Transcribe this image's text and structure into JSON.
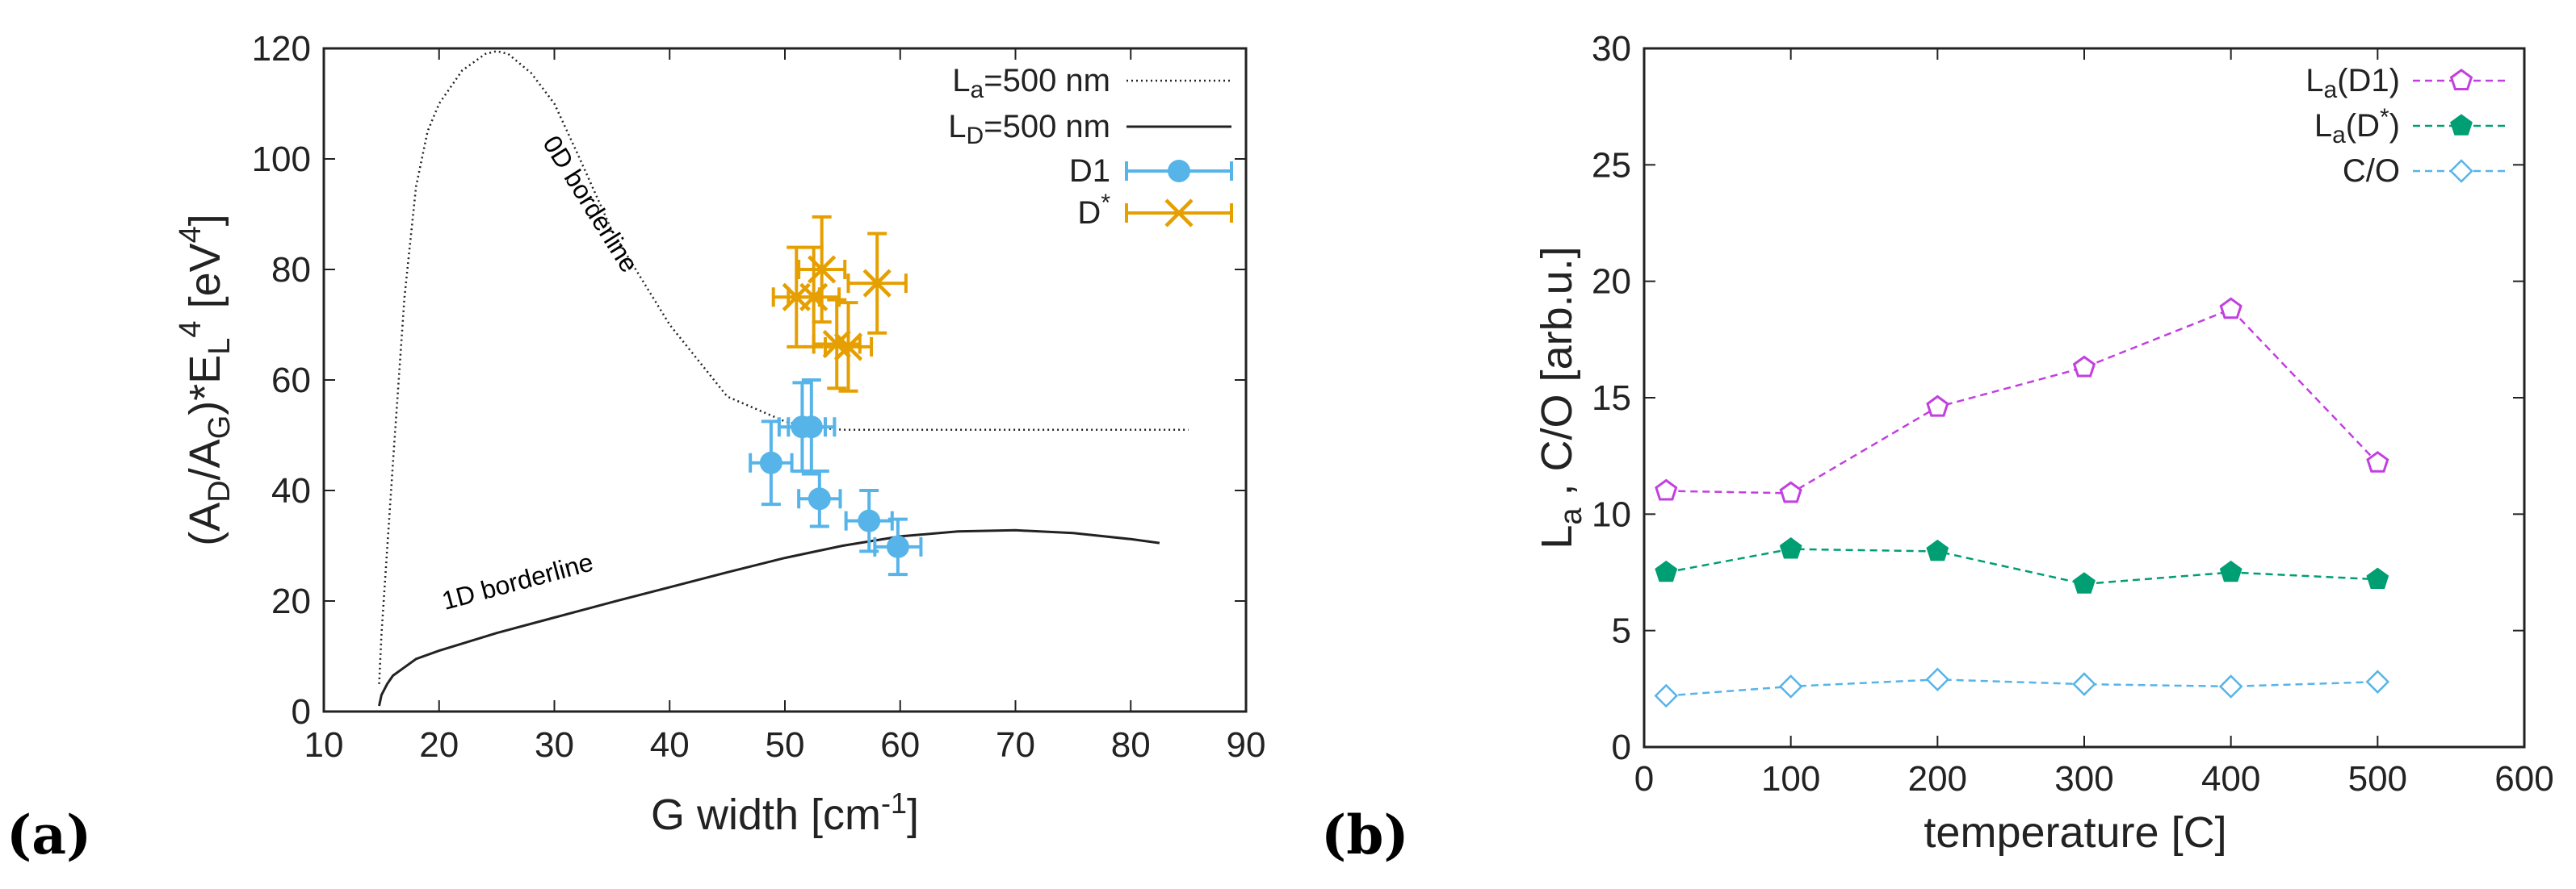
{
  "panels": {
    "a": {
      "tag": "(a)"
    },
    "b": {
      "tag": "(b)"
    }
  },
  "chart_data": [
    {
      "type": "scatter",
      "panel": "(a)",
      "xlabel": "G width [cm",
      "xlabel_sup": "-1",
      "xlabel_close": "]",
      "ylabel": "(A_D/A_G)*E_L^4 [eV^4]",
      "xlim": [
        10,
        90
      ],
      "ylim": [
        0,
        120
      ],
      "xticks": [
        10,
        20,
        30,
        40,
        50,
        60,
        70,
        80,
        90
      ],
      "yticks": [
        0,
        20,
        40,
        60,
        80,
        100,
        120
      ],
      "legend_position": "top-right",
      "annotations": [
        "0D borderline",
        "1D borderline"
      ],
      "series": [
        {
          "name": "La=500 nm",
          "kind": "line",
          "style": "dotted",
          "color": "#222222",
          "x": [
            14.8,
            15,
            16,
            17,
            18,
            19,
            20,
            22,
            24,
            25,
            26,
            28,
            30,
            32,
            35,
            40,
            45,
            50,
            52,
            55,
            60,
            65,
            70,
            75,
            80,
            85
          ],
          "y": [
            5,
            14,
            45,
            75,
            95,
            105,
            110,
            116,
            119,
            119.5,
            119,
            115.5,
            110,
            101,
            87,
            70,
            57,
            52.5,
            51.5,
            51,
            51,
            51,
            51,
            51,
            51,
            51
          ]
        },
        {
          "name": "LD=500 nm",
          "kind": "line",
          "style": "solid",
          "color": "#222222",
          "x": [
            14.8,
            15,
            15.5,
            16,
            17,
            18,
            20,
            25,
            30,
            35,
            40,
            45,
            50,
            55,
            60,
            65,
            70,
            75,
            80,
            82.5
          ],
          "y": [
            1,
            3,
            5,
            6.5,
            8,
            9.5,
            11,
            14.2,
            17,
            19.8,
            22.5,
            25.2,
            27.8,
            30,
            31.7,
            32.6,
            32.8,
            32.3,
            31.2,
            30.5
          ]
        },
        {
          "name": "D1",
          "kind": "points",
          "marker": "circle",
          "color": "#56B4E9",
          "x": [
            48.8,
            51.5,
            52.3,
            53,
            57.3,
            59.8
          ],
          "y": [
            45,
            51.5,
            51.5,
            38.5,
            34.5,
            29.8
          ],
          "xerr": [
            1.8,
            2,
            2,
            1.8,
            2,
            2
          ],
          "yerr": [
            7.5,
            8,
            8.5,
            5,
            5.5,
            5
          ]
        },
        {
          "name": "D*",
          "kind": "points",
          "marker": "x",
          "color": "#E69F00",
          "x": [
            51,
            52.5,
            53.2,
            54.5,
            55.5,
            58
          ],
          "y": [
            75,
            75,
            80,
            66.5,
            66,
            77.5
          ],
          "xerr": [
            2,
            2.2,
            2,
            2,
            2,
            2.5
          ],
          "yerr": [
            9,
            9,
            9.5,
            8,
            8,
            9
          ]
        }
      ]
    },
    {
      "type": "line",
      "panel": "(b)",
      "xlabel": "temperature  [C]",
      "ylabel": "L_a , C/O [arb.u.]",
      "xlim": [
        0,
        600
      ],
      "ylim": [
        0,
        30
      ],
      "xticks": [
        0,
        100,
        200,
        300,
        400,
        500,
        600
      ],
      "yticks": [
        0,
        5,
        10,
        15,
        20,
        25,
        30
      ],
      "legend_position": "top-right",
      "x": [
        15,
        100,
        200,
        300,
        400,
        500
      ],
      "series": [
        {
          "name": "La(D1)",
          "marker": "pentagon-open",
          "color": "#C23FE0",
          "values": [
            11,
            10.9,
            14.6,
            16.3,
            18.8,
            12.2
          ]
        },
        {
          "name": "La(D*)",
          "marker": "pentagon-filled",
          "color": "#009E73",
          "values": [
            7.5,
            8.5,
            8.4,
            7,
            7.5,
            7.2
          ]
        },
        {
          "name": "C/O",
          "marker": "diamond-open",
          "color": "#56B4E9",
          "values": [
            2.2,
            2.6,
            2.9,
            2.7,
            2.6,
            2.8
          ]
        }
      ]
    }
  ]
}
